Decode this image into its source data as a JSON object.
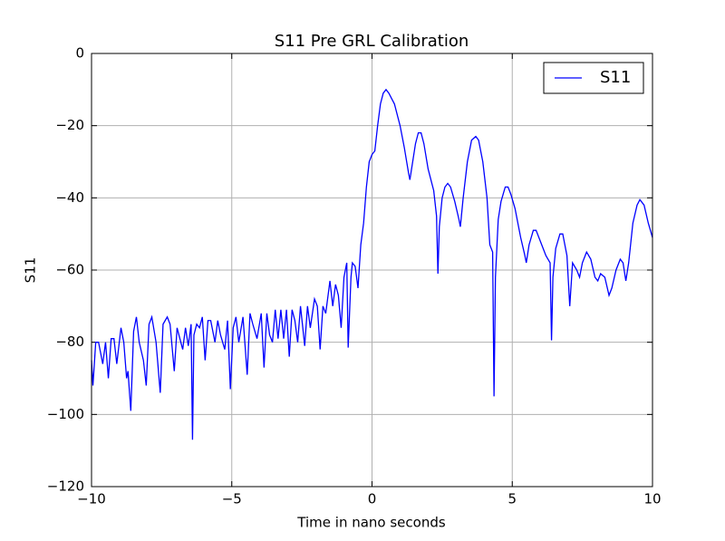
{
  "chart_data": {
    "type": "line",
    "title": "S11 Pre GRL Calibration",
    "xlabel": "Time in nano seconds",
    "ylabel": "S11",
    "x": [
      -10.0,
      -9.95,
      -9.85,
      -9.75,
      -9.6,
      -9.5,
      -9.4,
      -9.3,
      -9.2,
      -9.1,
      -8.95,
      -8.85,
      -8.75,
      -8.7,
      -8.6,
      -8.5,
      -8.4,
      -8.3,
      -8.15,
      -8.05,
      -7.95,
      -7.85,
      -7.7,
      -7.55,
      -7.45,
      -7.3,
      -7.2,
      -7.05,
      -6.95,
      -6.85,
      -6.75,
      -6.65,
      -6.55,
      -6.45,
      -6.4,
      -6.35,
      -6.25,
      -6.15,
      -6.05,
      -5.95,
      -5.85,
      -5.75,
      -5.6,
      -5.5,
      -5.4,
      -5.25,
      -5.15,
      -5.05,
      -4.95,
      -4.85,
      -4.75,
      -4.6,
      -4.45,
      -4.35,
      -4.25,
      -4.1,
      -3.95,
      -3.85,
      -3.75,
      -3.65,
      -3.55,
      -3.45,
      -3.35,
      -3.25,
      -3.15,
      -3.05,
      -2.95,
      -2.85,
      -2.75,
      -2.65,
      -2.55,
      -2.4,
      -2.3,
      -2.2,
      -2.05,
      -1.95,
      -1.85,
      -1.75,
      -1.65,
      -1.5,
      -1.4,
      -1.3,
      -1.2,
      -1.1,
      -1.0,
      -0.9,
      -0.85,
      -0.75,
      -0.7,
      -0.6,
      -0.5,
      -0.4,
      -0.3,
      -0.2,
      -0.1,
      0,
      0.1,
      0.2,
      0.3,
      0.4,
      0.5,
      0.6,
      0.8,
      1.0,
      1.15,
      1.3,
      1.35,
      1.45,
      1.55,
      1.65,
      1.75,
      1.85,
      2.0,
      2.2,
      2.3,
      2.35,
      2.4,
      2.5,
      2.6,
      2.7,
      2.8,
      2.95,
      3.1,
      3.15,
      3.25,
      3.4,
      3.55,
      3.7,
      3.8,
      3.95,
      4.1,
      4.2,
      4.3,
      4.35,
      4.4,
      4.5,
      4.6,
      4.75,
      4.85,
      4.95,
      5.1,
      5.3,
      5.45,
      5.5,
      5.6,
      5.75,
      5.85,
      6.0,
      6.2,
      6.35,
      6.4,
      6.45,
      6.55,
      6.7,
      6.8,
      6.95,
      7.05,
      7.15,
      7.3,
      7.4,
      7.5,
      7.65,
      7.8,
      7.95,
      8.05,
      8.15,
      8.3,
      8.45,
      8.55,
      8.7,
      8.85,
      8.95,
      9.05,
      9.15,
      9.3,
      9.45,
      9.55,
      9.7,
      9.85,
      10.0
    ],
    "series": [
      {
        "name": "S11",
        "color": "#0000ff",
        "values": [
          -85,
          -92,
          -80,
          -80,
          -86,
          -80,
          -90,
          -79,
          -79,
          -86,
          -76,
          -80,
          -90,
          -88,
          -99,
          -77,
          -73,
          -80,
          -85,
          -92,
          -75,
          -73,
          -80,
          -94,
          -75,
          -73,
          -75,
          -88,
          -76,
          -79,
          -82,
          -76,
          -81,
          -75,
          -107,
          -78,
          -75,
          -76,
          -73,
          -85,
          -74,
          -74,
          -80,
          -74,
          -78,
          -82,
          -74,
          -93,
          -76,
          -73,
          -80,
          -73,
          -89,
          -72,
          -75,
          -79,
          -72,
          -87,
          -72,
          -78,
          -80,
          -71,
          -79,
          -71,
          -79,
          -71,
          -84,
          -71,
          -74,
          -80,
          -70,
          -81,
          -70,
          -76,
          -68,
          -70,
          -82,
          -70,
          -72,
          -63,
          -70,
          -64,
          -67,
          -76,
          -62,
          -58,
          -81.5,
          -62,
          -58,
          -59,
          -65,
          -53,
          -47,
          -37,
          -30,
          -28,
          -27,
          -20,
          -14,
          -11,
          -10,
          -11,
          -14,
          -20,
          -26,
          -33,
          -35,
          -30,
          -25,
          -22,
          -22,
          -25,
          -32,
          -38,
          -45,
          -61,
          -48,
          -40,
          -37,
          -36,
          -37,
          -41,
          -46,
          -48,
          -40,
          -30,
          -24,
          -23,
          -24,
          -30,
          -40,
          -53,
          -55,
          -95,
          -62,
          -46,
          -41,
          -37,
          -37,
          -39,
          -43,
          -51,
          -56,
          -58,
          -53,
          -49,
          -49,
          -52,
          -56,
          -58,
          -79.5,
          -62,
          -54,
          -50,
          -50,
          -56,
          -70,
          -58,
          -60,
          -62,
          -58,
          -55,
          -57,
          -62,
          -63,
          -61,
          -62,
          -67,
          -65,
          -60,
          -57,
          -58,
          -63,
          -58,
          -47,
          -42,
          -40.5,
          -42,
          -47,
          -51
        ]
      }
    ],
    "xlim": [
      -10,
      10
    ],
    "ylim": [
      -120,
      0
    ],
    "xticks": [
      {
        "value": -10,
        "label": "−10"
      },
      {
        "value": -5,
        "label": "−5"
      },
      0,
      5,
      10
    ],
    "yticks": [
      {
        "value": -120,
        "label": "−120"
      },
      {
        "value": -100,
        "label": "−100"
      },
      {
        "value": -80,
        "label": "−80"
      },
      {
        "value": -60,
        "label": "−60"
      },
      {
        "value": -40,
        "label": "−40"
      },
      {
        "value": -20,
        "label": "−20"
      },
      0
    ],
    "grid": true,
    "legend": "upper-right"
  }
}
